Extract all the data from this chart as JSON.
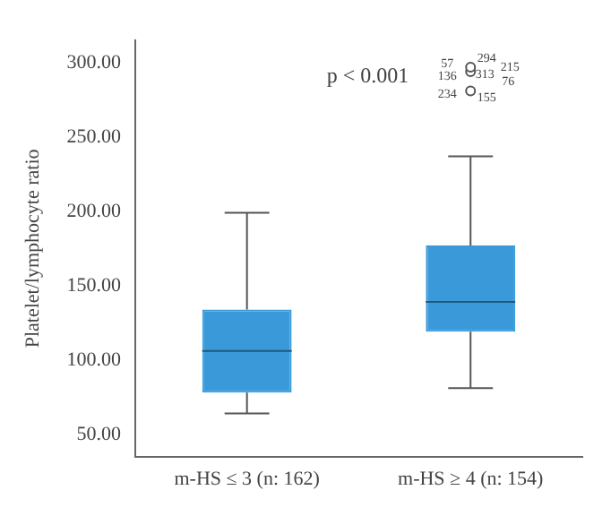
{
  "chart_data": {
    "type": "box",
    "ylabel": "Platelet/lymphocyte ratio",
    "categories": [
      "m-HS ≤ 3 (n: 162)",
      "m-HS ≥ 4 (n: 154)"
    ],
    "color": "#3a9ad9",
    "boxes": [
      {
        "low": 64,
        "q1": 78,
        "median": 106,
        "q3": 134,
        "high": 199
      },
      {
        "low": 81,
        "q1": 119,
        "median": 139,
        "q3": 177,
        "high": 237,
        "outliers": [
          281,
          294,
          297
        ]
      }
    ],
    "ylim": [
      35,
      315
    ],
    "yticks": [
      {
        "value": 50,
        "label": "50.00"
      },
      {
        "value": 100,
        "label": "100.00"
      },
      {
        "value": 150,
        "label": "150.00"
      },
      {
        "value": 200,
        "label": "200.00"
      },
      {
        "value": 250,
        "label": "250.00"
      },
      {
        "value": 300,
        "label": "300.00"
      }
    ],
    "grid": false,
    "legend": false,
    "annotations": [
      "p < 0.001",
      "57",
      "294",
      "215",
      "136",
      "313",
      "76",
      "234",
      "155"
    ]
  }
}
